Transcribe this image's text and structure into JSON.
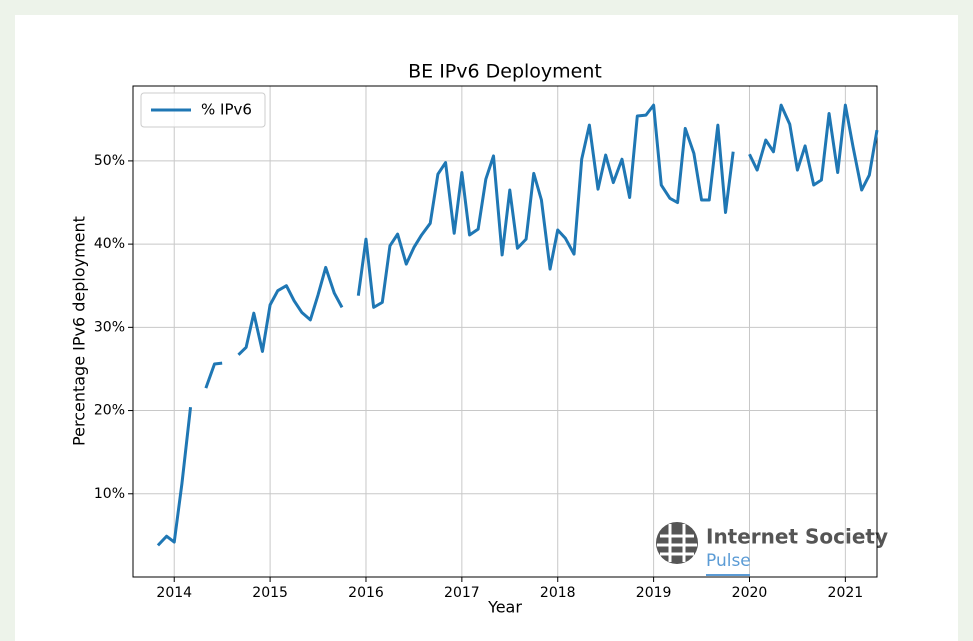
{
  "chart_data": {
    "type": "line",
    "title": "BE IPv6 Deployment",
    "xlabel": "Year",
    "ylabel": "Percentage IPv6 deployment",
    "watermark": [
      "Internet Society",
      "Pulse"
    ],
    "legend": "upper left",
    "grid": true,
    "xlim": [
      2013.57,
      2021.33
    ],
    "ylim": [
      0,
      59
    ],
    "xticks": [
      2014,
      2015,
      2016,
      2017,
      2018,
      2019,
      2020,
      2021
    ],
    "yticks": [
      {
        "value": 10,
        "label": "10%"
      },
      {
        "value": 20,
        "label": "20%"
      },
      {
        "value": 30,
        "label": "30%"
      },
      {
        "value": 40,
        "label": "40%"
      },
      {
        "value": 50,
        "label": "50%"
      }
    ],
    "x": [
      2013.83,
      2013.92,
      2014.0,
      2014.08,
      2014.17,
      2014.25,
      2014.33,
      2014.42,
      2014.5,
      2014.58,
      2014.67,
      2014.75,
      2014.83,
      2014.92,
      2015.0,
      2015.08,
      2015.17,
      2015.25,
      2015.33,
      2015.42,
      2015.5,
      2015.58,
      2015.67,
      2015.75,
      2015.83,
      2015.92,
      2016.0,
      2016.08,
      2016.17,
      2016.25,
      2016.33,
      2016.42,
      2016.5,
      2016.58,
      2016.67,
      2016.75,
      2016.83,
      2016.92,
      2017.0,
      2017.08,
      2017.17,
      2017.25,
      2017.33,
      2017.42,
      2017.5,
      2017.58,
      2017.67,
      2017.75,
      2017.83,
      2017.92,
      2018.0,
      2018.08,
      2018.17,
      2018.25,
      2018.33,
      2018.42,
      2018.5,
      2018.58,
      2018.67,
      2018.75,
      2018.83,
      2018.92,
      2019.0,
      2019.08,
      2019.17,
      2019.25,
      2019.33,
      2019.42,
      2019.5,
      2019.58,
      2019.67,
      2019.75,
      2019.83,
      2019.92,
      2020.0,
      2020.08,
      2020.17,
      2020.25,
      2020.33,
      2020.42,
      2020.5,
      2020.58,
      2020.67,
      2020.75,
      2020.83,
      2020.92,
      2021.0,
      2021.08,
      2021.17,
      2021.25,
      2021.33
    ],
    "series": [
      {
        "name": "% IPv6",
        "color": "#1f77b4",
        "values": [
          3.8,
          4.9,
          4.2,
          11.2,
          20.4,
          null,
          22.7,
          25.6,
          25.7,
          null,
          26.7,
          27.6,
          31.7,
          27.1,
          32.7,
          34.4,
          35.0,
          33.2,
          31.8,
          30.9,
          33.9,
          37.2,
          34.1,
          32.4,
          null,
          33.8,
          40.6,
          32.4,
          33.0,
          39.8,
          41.2,
          37.6,
          39.6,
          41.1,
          42.5,
          48.4,
          49.8,
          41.3,
          48.6,
          41.1,
          41.8,
          47.8,
          50.6,
          38.7,
          46.5,
          39.5,
          40.6,
          48.5,
          45.3,
          37.0,
          41.7,
          40.7,
          38.8,
          50.2,
          54.3,
          46.6,
          50.7,
          47.4,
          50.2,
          45.6,
          55.4,
          55.5,
          56.7,
          47.1,
          45.5,
          45.0,
          53.9,
          50.9,
          45.3,
          45.3,
          54.3,
          43.8,
          51.1,
          null,
          50.8,
          48.9,
          52.5,
          51.1,
          56.7,
          54.4,
          48.9,
          51.8,
          47.1,
          47.7,
          55.7,
          48.6,
          56.7,
          51.7,
          46.5,
          48.3,
          53.7
        ]
      }
    ]
  }
}
